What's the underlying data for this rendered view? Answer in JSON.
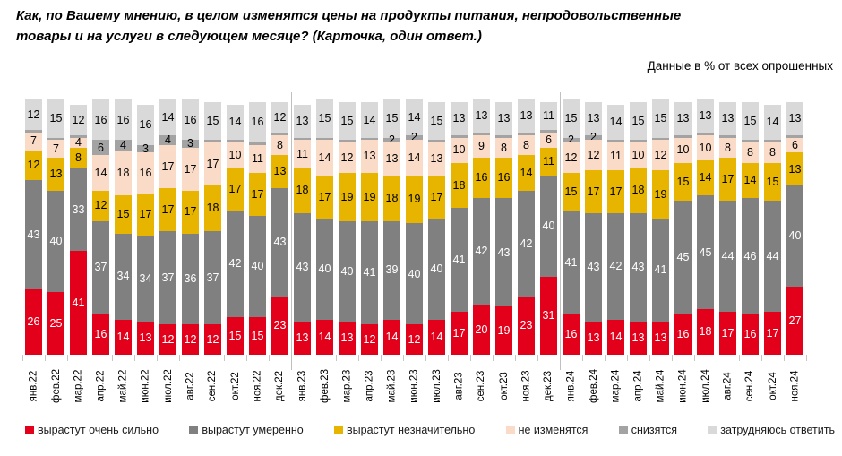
{
  "header": {
    "title_line1": "Как, по Вашему мнению, в целом изменятся цены на продукты питания, непродовольственные",
    "title_line2": "товары и на услуги в следующем месяце? (Карточка, один ответ.)",
    "subtitle": "Данные в % от всех опрошенных"
  },
  "chart_data": {
    "type": "bar",
    "stacked": true,
    "unit": "%",
    "title": "Как, по Вашему мнению, в целом изменятся цены на продукты питания, непродовольственные товары и на услуги в следующем месяце? (Карточка, один ответ.)",
    "subtitle": "Данные в % от всех опрошенных",
    "ylim": [
      0,
      100
    ],
    "grid": false,
    "legend_position": "bottom",
    "min_label_value": 2,
    "year_separator_after": [
      "дек.22",
      "дек.23"
    ],
    "categories": [
      "янв.22",
      "фев.22",
      "мар.22",
      "апр.22",
      "май.22",
      "июн.22",
      "июл.22",
      "авг.22",
      "сен.22",
      "окт.22",
      "ноя.22",
      "дек.22",
      "янв.23",
      "фев.23",
      "мар.23",
      "апр.23",
      "май.23",
      "июн.23",
      "июл.23",
      "авг.23",
      "сен.23",
      "окт.23",
      "ноя.23",
      "дек.23",
      "янв.24",
      "фев.24",
      "мар.24",
      "апр.24",
      "май.24",
      "июн.24",
      "июл.24",
      "авг.24",
      "сен.24",
      "окт.24",
      "ноя.24"
    ],
    "series": [
      {
        "name": "вырастут очень сильно",
        "color": "#e2001a",
        "label_color": "#ffffff",
        "values": [
          26,
          25,
          41,
          16,
          14,
          13,
          12,
          12,
          12,
          15,
          15,
          23,
          13,
          14,
          13,
          12,
          14,
          12,
          14,
          17,
          20,
          19,
          23,
          31,
          16,
          13,
          14,
          13,
          13,
          16,
          18,
          17,
          16,
          17,
          27
        ]
      },
      {
        "name": "вырастут умеренно",
        "color": "#808080",
        "label_color": "#ffffff",
        "values": [
          43,
          40,
          33,
          37,
          34,
          34,
          37,
          36,
          37,
          42,
          40,
          43,
          43,
          40,
          40,
          41,
          39,
          40,
          40,
          41,
          42,
          43,
          42,
          40,
          41,
          43,
          42,
          43,
          41,
          45,
          45,
          44,
          46,
          44,
          40
        ]
      },
      {
        "name": "вырастут незначительно",
        "color": "#e7b500",
        "label_color": "#000000",
        "values": [
          12,
          13,
          8,
          12,
          15,
          17,
          17,
          17,
          18,
          17,
          17,
          13,
          18,
          17,
          19,
          19,
          18,
          19,
          17,
          18,
          16,
          16,
          14,
          11,
          15,
          17,
          17,
          18,
          19,
          15,
          14,
          17,
          14,
          15,
          13
        ]
      },
      {
        "name": "не изменятся",
        "color": "#f9dbc8",
        "label_color": "#000000",
        "values": [
          7,
          7,
          4,
          14,
          18,
          16,
          17,
          17,
          17,
          10,
          11,
          8,
          11,
          14,
          12,
          13,
          13,
          14,
          13,
          10,
          9,
          8,
          8,
          6,
          12,
          12,
          11,
          10,
          12,
          10,
          10,
          8,
          8,
          8,
          6
        ]
      },
      {
        "name": "снизятся",
        "color": "#a3a3a3",
        "label_color": "#000000",
        "values": [
          1,
          1,
          1,
          6,
          4,
          3,
          4,
          3,
          1,
          1,
          1,
          1,
          1,
          1,
          1,
          1,
          2,
          2,
          1,
          1,
          1,
          1,
          1,
          1,
          2,
          2,
          1,
          1,
          1,
          1,
          1,
          1,
          1,
          1,
          1
        ]
      },
      {
        "name": "затрудняюсь ответить",
        "color": "#d9d9d9",
        "label_color": "#000000",
        "values": [
          12,
          15,
          12,
          16,
          16,
          16,
          14,
          16,
          15,
          14,
          16,
          12,
          13,
          15,
          15,
          14,
          15,
          14,
          15,
          13,
          13,
          13,
          13,
          11,
          15,
          13,
          14,
          15,
          15,
          13,
          13,
          13,
          15,
          14,
          13
        ]
      }
    ]
  }
}
